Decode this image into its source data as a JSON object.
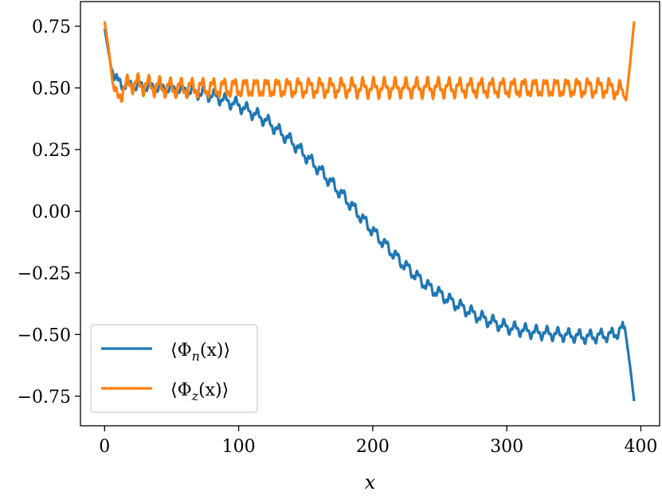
{
  "chart_data": {
    "type": "line",
    "title": "",
    "xlabel": "x",
    "ylabel": "",
    "xlim": [
      -18,
      414
    ],
    "ylim": [
      -0.87,
      0.85
    ],
    "xticks": [
      0,
      100,
      200,
      300,
      400
    ],
    "xtick_labels": [
      "0",
      "100",
      "200",
      "300",
      "400"
    ],
    "yticks": [
      0.75,
      0.5,
      0.25,
      0.0,
      -0.25,
      -0.5,
      -0.75
    ],
    "ytick_labels": [
      "0.75",
      "0.50",
      "0.25",
      "0.00",
      "−0.25",
      "−0.50",
      "−0.75"
    ],
    "grid": false,
    "legend_position": "lower-left",
    "x_max": 395,
    "series": [
      {
        "name": "⟨Φn(x)⟩",
        "legend_main": "⟨Φ",
        "legend_sub": "n",
        "legend_tail": "(x)⟩",
        "color": "#1f77b4",
        "x": [
          0,
          5,
          10,
          20,
          40,
          60,
          80,
          100,
          120,
          140,
          160,
          180,
          200,
          220,
          240,
          260,
          280,
          300,
          320,
          340,
          360,
          380,
          388,
          392,
          395
        ],
        "y": [
          0.74,
          0.58,
          0.52,
          0.51,
          0.5,
          0.49,
          0.47,
          0.43,
          0.37,
          0.28,
          0.17,
          0.05,
          -0.08,
          -0.2,
          -0.3,
          -0.37,
          -0.43,
          -0.47,
          -0.49,
          -0.5,
          -0.51,
          -0.5,
          -0.47,
          -0.63,
          -0.77
        ],
        "ripple": 0.02
      },
      {
        "name": "⟨Φz(x)⟩",
        "legend_main": "⟨Φ",
        "legend_sub": "z",
        "legend_tail": "(x)⟩",
        "color": "#ff7f0e",
        "x": [
          0,
          3,
          6,
          9,
          14,
          20,
          30,
          50,
          100,
          200,
          300,
          360,
          375,
          385,
          389,
          392,
          395
        ],
        "y": [
          0.77,
          0.66,
          0.52,
          0.45,
          0.5,
          0.52,
          0.51,
          0.5,
          0.5,
          0.5,
          0.5,
          0.5,
          0.5,
          0.49,
          0.45,
          0.6,
          0.77
        ],
        "ripple": 0.03
      }
    ]
  }
}
